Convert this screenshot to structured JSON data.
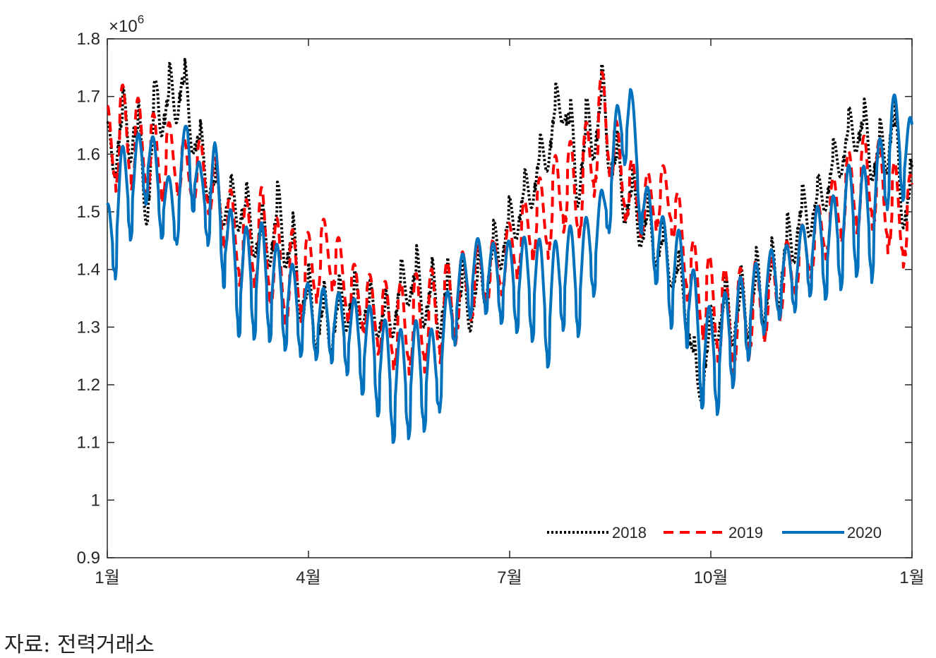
{
  "chart_data": {
    "type": "line",
    "title": "",
    "xlabel": "",
    "ylabel": "",
    "y_exponent_label": "×10",
    "y_exponent": "6",
    "x_ticks": [
      "1월",
      "4월",
      "7월",
      "10월",
      "1월"
    ],
    "x_tick_positions": [
      1,
      4,
      7,
      10,
      13
    ],
    "xlim": [
      1,
      13
    ],
    "y_ticks": [
      "0.9",
      "1",
      "1.1",
      "1.2",
      "1.3",
      "1.4",
      "1.5",
      "1.6",
      "1.7",
      "1.8"
    ],
    "ylim": [
      0.9,
      1.8
    ],
    "grid": false,
    "legend_position": "bottom-right",
    "x_units": "month (fractional, 1 = Jan 1, 13 = next Jan 1)",
    "y_units": "×10^6",
    "series": [
      {
        "name": "2018",
        "color": "#000000",
        "style": "dotted",
        "x": [
          1.0,
          1.2,
          1.4,
          1.6,
          1.75,
          1.9,
          2.1,
          2.3,
          2.5,
          2.7,
          3.0,
          3.3,
          3.6,
          4.0,
          4.3,
          4.6,
          5.0,
          5.2,
          5.5,
          5.8,
          6.2,
          6.5,
          6.8,
          7.1,
          7.4,
          7.6,
          7.8,
          8.0,
          8.2,
          8.4,
          8.6,
          8.8,
          9.0,
          9.3,
          9.6,
          9.8,
          10.1,
          10.4,
          10.7,
          11.0,
          11.3,
          11.6,
          11.9,
          12.2,
          12.5,
          12.7,
          12.9
        ],
        "y": [
          1.66,
          1.72,
          1.74,
          1.62,
          1.79,
          1.76,
          1.8,
          1.7,
          1.62,
          1.57,
          1.57,
          1.52,
          1.57,
          1.42,
          1.38,
          1.41,
          1.38,
          1.37,
          1.46,
          1.43,
          1.43,
          1.44,
          1.5,
          1.55,
          1.62,
          1.69,
          1.78,
          1.64,
          1.73,
          1.77,
          1.65,
          1.6,
          1.55,
          1.49,
          1.42,
          1.25,
          1.4,
          1.41,
          1.45,
          1.47,
          1.55,
          1.57,
          1.65,
          1.72,
          1.66,
          1.74,
          1.6
        ]
      },
      {
        "name": "2019",
        "color": "#ff0000",
        "style": "dashed",
        "x": [
          1.0,
          1.2,
          1.4,
          1.6,
          1.8,
          2.0,
          2.2,
          2.4,
          2.6,
          2.8,
          3.0,
          3.3,
          3.6,
          4.0,
          4.3,
          4.6,
          5.0,
          5.3,
          5.6,
          5.9,
          6.2,
          6.5,
          6.8,
          7.1,
          7.4,
          7.6,
          7.8,
          8.0,
          8.2,
          8.4,
          8.6,
          8.8,
          9.0,
          9.2,
          9.4,
          9.6,
          9.8,
          10.0,
          10.3,
          10.6,
          10.9,
          11.2,
          11.5,
          11.8,
          12.1,
          12.4,
          12.7,
          12.9
        ],
        "y": [
          1.69,
          1.73,
          1.71,
          1.69,
          1.66,
          1.66,
          1.62,
          1.63,
          1.6,
          1.55,
          1.52,
          1.55,
          1.48,
          1.47,
          1.5,
          1.42,
          1.39,
          1.38,
          1.4,
          1.41,
          1.43,
          1.45,
          1.46,
          1.5,
          1.56,
          1.58,
          1.64,
          1.62,
          1.68,
          1.76,
          1.66,
          1.6,
          1.57,
          1.58,
          1.59,
          1.5,
          1.44,
          1.43,
          1.4,
          1.42,
          1.43,
          1.46,
          1.5,
          1.56,
          1.62,
          1.65,
          1.6,
          1.57
        ]
      },
      {
        "name": "2020",
        "color": "#0072bd",
        "style": "solid",
        "x": [
          1.0,
          1.2,
          1.4,
          1.6,
          1.8,
          2.0,
          2.2,
          2.4,
          2.6,
          2.8,
          3.0,
          3.3,
          3.6,
          4.0,
          4.3,
          4.6,
          5.0,
          5.3,
          5.6,
          5.9,
          6.2,
          6.5,
          6.8,
          7.1,
          7.4,
          7.6,
          7.8,
          8.0,
          8.2,
          8.4,
          8.6,
          8.8,
          9.0,
          9.2,
          9.4,
          9.6,
          9.8,
          10.0,
          10.3,
          10.6,
          10.9,
          11.2,
          11.5,
          11.8,
          12.1,
          12.4,
          12.7,
          12.9
        ],
        "y": [
          1.52,
          1.62,
          1.63,
          1.67,
          1.59,
          1.55,
          1.68,
          1.58,
          1.63,
          1.52,
          1.48,
          1.49,
          1.44,
          1.38,
          1.37,
          1.36,
          1.34,
          1.3,
          1.32,
          1.3,
          1.42,
          1.46,
          1.45,
          1.46,
          1.47,
          1.43,
          1.5,
          1.47,
          1.51,
          1.55,
          1.69,
          1.73,
          1.56,
          1.52,
          1.47,
          1.48,
          1.38,
          1.34,
          1.38,
          1.41,
          1.44,
          1.45,
          1.51,
          1.53,
          1.6,
          1.58,
          1.72,
          1.67
        ]
      }
    ]
  },
  "source_text": "자료: 전력거래소"
}
